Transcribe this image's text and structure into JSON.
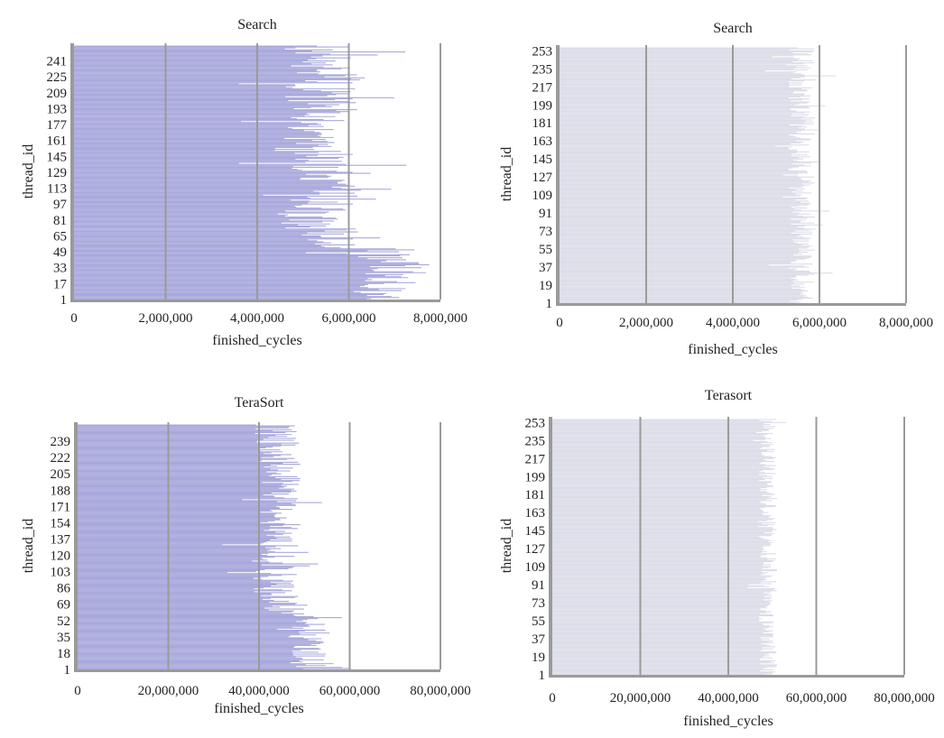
{
  "chart_data": [
    {
      "type": "bar",
      "orientation": "horizontal",
      "title": "Search",
      "xlabel": "finished_cycles",
      "ylabel": "thread_id",
      "xlim": [
        0,
        8000000
      ],
      "x_ticks": [
        "0",
        "2,000,000",
        "4,000,000",
        "6,000,000",
        "8,000,000"
      ],
      "y_ticks": [
        "1",
        "17",
        "33",
        "49",
        "65",
        "81",
        "97",
        "113",
        "129",
        "145",
        "161",
        "177",
        "193",
        "209",
        "225",
        "241"
      ],
      "thread_count": 256,
      "grid": true,
      "bar_color": "#a9a9dc",
      "typical_range": [
        4500000,
        6800000
      ],
      "profile": [
        {
          "thread_id": 1,
          "value": 6800000
        },
        {
          "thread_id": 17,
          "value": 7000000
        },
        {
          "thread_id": 33,
          "value": 7200000
        },
        {
          "thread_id": 49,
          "value": 6500000
        },
        {
          "thread_id": 65,
          "value": 5500000
        },
        {
          "thread_id": 81,
          "value": 5200000
        },
        {
          "thread_id": 97,
          "value": 5300000
        },
        {
          "thread_id": 113,
          "value": 5600000
        },
        {
          "thread_id": 129,
          "value": 5400000
        },
        {
          "thread_id": 145,
          "value": 5200000
        },
        {
          "thread_id": 161,
          "value": 5100000
        },
        {
          "thread_id": 177,
          "value": 5400000
        },
        {
          "thread_id": 193,
          "value": 5500000
        },
        {
          "thread_id": 209,
          "value": 5300000
        },
        {
          "thread_id": 225,
          "value": 5600000
        },
        {
          "thread_id": 241,
          "value": 5400000
        },
        {
          "thread_id": 256,
          "value": 5300000
        }
      ]
    },
    {
      "type": "bar",
      "orientation": "horizontal",
      "title": "Search",
      "xlabel": "finished_cycles",
      "ylabel": "thread_id",
      "xlim": [
        0,
        8000000
      ],
      "x_ticks": [
        "0",
        "2,000,000",
        "4,000,000",
        "6,000,000",
        "8,000,000"
      ],
      "y_ticks": [
        "1",
        "19",
        "37",
        "55",
        "73",
        "91",
        "109",
        "127",
        "145",
        "163",
        "181",
        "199",
        "217",
        "235",
        "253"
      ],
      "thread_count": 256,
      "grid": true,
      "bar_color": "#dcdde8",
      "typical_range": [
        5100000,
        6000000
      ],
      "profile": [
        {
          "thread_id": 1,
          "value": 5600000
        },
        {
          "thread_id": 64,
          "value": 5600000
        },
        {
          "thread_id": 128,
          "value": 5600000
        },
        {
          "thread_id": 192,
          "value": 5600000
        },
        {
          "thread_id": 256,
          "value": 5600000
        }
      ]
    },
    {
      "type": "bar",
      "orientation": "horizontal",
      "title": "TeraSort",
      "xlabel": "finished_cycles",
      "ylabel": "thread_id",
      "xlim": [
        0,
        80000000
      ],
      "x_ticks": [
        "0",
        "20,000,000",
        "40,000,000",
        "60,000,000",
        "80,000,000"
      ],
      "y_ticks": [
        "1",
        "18",
        "35",
        "52",
        "69",
        "86",
        "103",
        "120",
        "137",
        "154",
        "171",
        "188",
        "205",
        "222",
        "239"
      ],
      "thread_count": 256,
      "grid": true,
      "bar_color": "#a9a9dc",
      "typical_range": [
        38000000,
        52000000
      ],
      "profile": [
        {
          "thread_id": 1,
          "value": 52000000
        },
        {
          "thread_id": 35,
          "value": 51000000
        },
        {
          "thread_id": 52,
          "value": 50000000
        },
        {
          "thread_id": 69,
          "value": 44000000
        },
        {
          "thread_id": 103,
          "value": 43000000
        },
        {
          "thread_id": 137,
          "value": 44000000
        },
        {
          "thread_id": 171,
          "value": 45000000
        },
        {
          "thread_id": 205,
          "value": 45000000
        },
        {
          "thread_id": 239,
          "value": 44000000
        },
        {
          "thread_id": 256,
          "value": 43000000
        }
      ]
    },
    {
      "type": "bar",
      "orientation": "horizontal",
      "title": "Terasort",
      "xlabel": "finished_cycles",
      "ylabel": "thread_id",
      "xlim": [
        0,
        80000000
      ],
      "x_ticks": [
        "0",
        "20,000,000",
        "40,000,000",
        "60,000,000",
        "80,000,000"
      ],
      "y_ticks": [
        "1",
        "19",
        "37",
        "55",
        "73",
        "91",
        "109",
        "127",
        "145",
        "163",
        "181",
        "199",
        "217",
        "235",
        "253"
      ],
      "thread_count": 256,
      "grid": true,
      "bar_color": "#dcdde8",
      "typical_range": [
        46000000,
        52000000
      ],
      "profile": [
        {
          "thread_id": 1,
          "value": 49000000
        },
        {
          "thread_id": 64,
          "value": 49000000
        },
        {
          "thread_id": 128,
          "value": 49000000
        },
        {
          "thread_id": 192,
          "value": 49000000
        },
        {
          "thread_id": 256,
          "value": 49000000
        }
      ]
    }
  ]
}
